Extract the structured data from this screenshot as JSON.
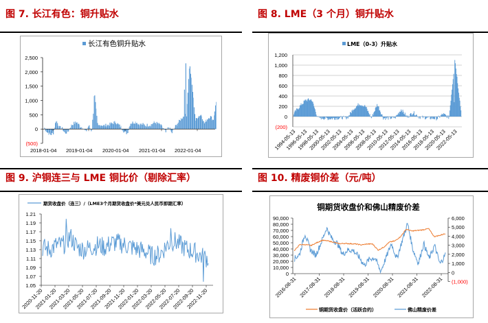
{
  "figures": {
    "fig7": {
      "title": "图 7.  长江有色：铜升贴水"
    },
    "fig8": {
      "title": "图 8.  LME（3 个月）铜升贴水"
    },
    "fig9": {
      "title": "图 9.  沪铜连三与 LME 铜比价（剔除汇率）"
    },
    "fig10": {
      "title": "图 10.  精废铜价差（元/吨）"
    }
  },
  "chart_data": [
    {
      "id": "fig7",
      "type": "bar",
      "title": "",
      "legend": [
        "长江有色铜升贴水"
      ],
      "legend_position": "top",
      "color": "#5b9bd5",
      "ylim": [
        -500,
        2500
      ],
      "yticks": [
        "2,500",
        "2,000",
        "1,500",
        "1,000",
        "500",
        "0",
        "(500)"
      ],
      "xticks": [
        "2018-01-04",
        "2019-01-04",
        "2020-01-04",
        "2021-01-04",
        "2022-01-04"
      ],
      "grid": false,
      "series": [
        {
          "name": "长江有色铜升贴水",
          "x": [
            "2018-01",
            "2018-02",
            "2018-03",
            "2018-04",
            "2018-05",
            "2018-06",
            "2018-07",
            "2018-08",
            "2018-09",
            "2018-10",
            "2018-11",
            "2018-12",
            "2019-01",
            "2019-02",
            "2019-03",
            "2019-04",
            "2019-05",
            "2019-06",
            "2019-07",
            "2019-08",
            "2019-09",
            "2019-10",
            "2019-11",
            "2019-12",
            "2020-01",
            "2020-02",
            "2020-03",
            "2020-04",
            "2020-05",
            "2020-06",
            "2020-07",
            "2020-08",
            "2020-09",
            "2020-10",
            "2020-11",
            "2020-12",
            "2021-01",
            "2021-02",
            "2021-03",
            "2021-04",
            "2021-05",
            "2021-06",
            "2021-07",
            "2021-08",
            "2021-09",
            "2021-10",
            "2021-11",
            "2021-12",
            "2022-01",
            "2022-02",
            "2022-03",
            "2022-04",
            "2022-05",
            "2022-06",
            "2022-07",
            "2022-08",
            "2022-09",
            "2022-10",
            "2022-11"
          ],
          "values": [
            50,
            -120,
            -200,
            -150,
            320,
            60,
            20,
            -150,
            -80,
            120,
            200,
            250,
            100,
            60,
            -100,
            120,
            -80,
            1150,
            100,
            150,
            120,
            130,
            160,
            200,
            250,
            150,
            60,
            -100,
            -150,
            200,
            230,
            250,
            150,
            170,
            130,
            140,
            150,
            230,
            200,
            150,
            40,
            -120,
            80,
            -150,
            50,
            200,
            350,
            450,
            500,
            2300,
            1400,
            300,
            450,
            500,
            200,
            350,
            450,
            300,
            950
          ]
        }
      ]
    },
    {
      "id": "fig8",
      "type": "bar",
      "title": "",
      "legend": [
        "LME（0-3）升贴水"
      ],
      "legend_position": "top",
      "color": "#5b9bd5",
      "ylim": [
        -200,
        1200
      ],
      "yticks": [
        "1,200",
        "1,000",
        "800",
        "600",
        "400",
        "200",
        "0",
        "(200)"
      ],
      "xticks": [
        "1994-05-13",
        "1996-05-13",
        "1998-05-13",
        "2000-05-13",
        "2002-05-13",
        "2004-05-13",
        "2006-05-13",
        "2008-05-13",
        "2010-05-13",
        "2012-05-13",
        "2014-05-13",
        "2016-05-13",
        "2018-05-13",
        "2020-05-13",
        "2022-05-13"
      ],
      "grid": true,
      "series": [
        {
          "name": "LME（0-3）升贴水",
          "x": [
            "1994",
            "1995",
            "1996",
            "1997",
            "1998",
            "1999",
            "2000",
            "2001",
            "2002",
            "2003",
            "2004",
            "2005",
            "2006",
            "2007",
            "2008",
            "2009",
            "2010",
            "2011",
            "2012",
            "2013",
            "2014",
            "2015",
            "2016",
            "2017",
            "2018",
            "2019",
            "2020",
            "2021",
            "2022"
          ],
          "values": [
            60,
            200,
            320,
            330,
            -20,
            -30,
            -40,
            -30,
            -20,
            -20,
            150,
            250,
            200,
            -30,
            240,
            -30,
            -30,
            -20,
            140,
            -10,
            80,
            -10,
            -20,
            -30,
            -40,
            50,
            -20,
            1100,
            120
          ]
        }
      ]
    },
    {
      "id": "fig9",
      "type": "line",
      "title": "",
      "legend": [
        "期货收盘价（连三）/（LME3个月期货收盘价*美元兑人民币即期汇率）"
      ],
      "legend_position": "top",
      "color": "#5b9bd5",
      "ylim": [
        1.05,
        1.21
      ],
      "yticks": [
        "1.21",
        "1.19",
        "1.17",
        "1.15",
        "1.13",
        "1.11",
        "1.09",
        "1.07",
        "1.05"
      ],
      "xticks": [
        "2020-11-20",
        "2021-01-20",
        "2021-03-20",
        "2021-05-20",
        "2021-07-20",
        "2021-09-20",
        "2021-11-20",
        "2022-01-20",
        "2022-03-20",
        "2022-05-20",
        "2022-07-20",
        "2022-09-20",
        "2022-11-20"
      ],
      "grid": false,
      "series": [
        {
          "name": "期货收盘价（连三）/（LME3个月期货收盘价*美元兑人民币即期汇率）",
          "x": [
            "2020-11",
            "2020-12",
            "2021-01",
            "2021-02",
            "2021-03",
            "2021-04",
            "2021-05",
            "2021-06",
            "2021-07",
            "2021-08",
            "2021-09",
            "2021-10",
            "2021-11",
            "2021-12",
            "2022-01",
            "2022-02",
            "2022-03",
            "2022-04",
            "2022-05",
            "2022-06",
            "2022-07",
            "2022-08",
            "2022-09",
            "2022-10",
            "2022-11"
          ],
          "values": [
            1.135,
            1.13,
            1.14,
            1.14,
            1.16,
            1.135,
            1.13,
            1.135,
            1.14,
            1.135,
            1.145,
            1.145,
            1.14,
            1.135,
            1.13,
            1.125,
            1.115,
            1.12,
            1.14,
            1.15,
            1.14,
            1.13,
            1.125,
            1.115,
            1.11
          ]
        }
      ]
    },
    {
      "id": "fig10",
      "type": "line",
      "title": "铜期货收盘价和佛山精废价差",
      "legend": [
        "铜期货收盘价（活跃合约）",
        "佛山精废价差"
      ],
      "legend_position": "bottom",
      "ylim": [
        0,
        90000
      ],
      "y2lim": [
        -1000,
        6000
      ],
      "yticks": [
        "90,000",
        "80,000",
        "70,000",
        "60,000",
        "50,000",
        "40,000",
        "30,000",
        "20,000",
        "10,000",
        "0"
      ],
      "y2ticks": [
        "6,000",
        "5,000",
        "4,000",
        "3,000",
        "2,000",
        "1,000",
        "0",
        "(1,000)"
      ],
      "xticks": [
        "2016-08-31",
        "2017-08-31",
        "2018-08-31",
        "2019-08-31",
        "2020-08-31",
        "2021-08-31",
        "2022-08-31"
      ],
      "grid": false,
      "series": [
        {
          "name": "铜期货收盘价（活跃合约）",
          "axis": "left",
          "color": "#ed7d31",
          "x": [
            "2016-08",
            "2016-11",
            "2017-02",
            "2017-05",
            "2017-08",
            "2017-11",
            "2018-02",
            "2018-05",
            "2018-08",
            "2018-11",
            "2019-02",
            "2019-05",
            "2019-08",
            "2019-11",
            "2020-02",
            "2020-03",
            "2020-05",
            "2020-08",
            "2020-11",
            "2021-02",
            "2021-05",
            "2021-08",
            "2021-11",
            "2022-02",
            "2022-05",
            "2022-06",
            "2022-08",
            "2022-11"
          ],
          "values": [
            37000,
            47000,
            47000,
            45500,
            50000,
            54000,
            53000,
            51000,
            48500,
            49000,
            48500,
            48000,
            46500,
            48000,
            48000,
            38000,
            43000,
            51000,
            53000,
            60000,
            72000,
            69000,
            70000,
            71000,
            73000,
            60000,
            62000,
            65000
          ]
        },
        {
          "name": "佛山精废价差",
          "axis": "right",
          "color": "#5b9bd5",
          "x": [
            "2016-08",
            "2016-10",
            "2016-11",
            "2017-02",
            "2017-05",
            "2017-08",
            "2017-10",
            "2018-01",
            "2018-04",
            "2018-08",
            "2018-11",
            "2019-02",
            "2019-05",
            "2019-08",
            "2019-11",
            "2020-02",
            "2020-04",
            "2020-06",
            "2020-08",
            "2020-11",
            "2021-02",
            "2021-03",
            "2021-06",
            "2021-08",
            "2021-11",
            "2022-02",
            "2022-05",
            "2022-08",
            "2022-11"
          ],
          "values": [
            1500,
            2000,
            4300,
            2500,
            1900,
            3300,
            4900,
            3700,
            3200,
            2000,
            2500,
            2400,
            1700,
            800,
            1500,
            1600,
            100,
            1600,
            3200,
            1500,
            3500,
            5400,
            2500,
            1000,
            3200,
            1500,
            3000,
            900,
            2000
          ]
        }
      ]
    }
  ]
}
